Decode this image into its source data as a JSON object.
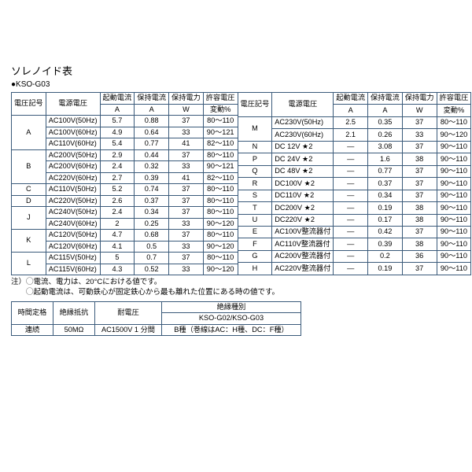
{
  "title": "ソレノイド表",
  "subtitle": "●KSO-G03",
  "headers": {
    "h1": "電圧記号",
    "h2": "電源電圧",
    "h3a": "起動電流",
    "h3b": "A",
    "h4a": "保持電流",
    "h4b": "A",
    "h5a": "保持電力",
    "h5b": "W",
    "h6a": "許容電圧",
    "h6b": "変動%"
  },
  "left": [
    {
      "code": "A",
      "rows": [
        {
          "v": "AC100V(50Hz)",
          "a": "5.7",
          "b": "0.88",
          "c": "37",
          "d": "80～110"
        },
        {
          "v": "AC100V(60Hz)",
          "a": "4.9",
          "b": "0.64",
          "c": "33",
          "d": "90～121"
        },
        {
          "v": "AC110V(60Hz)",
          "a": "5.4",
          "b": "0.77",
          "c": "41",
          "d": "82～110"
        }
      ]
    },
    {
      "code": "B",
      "rows": [
        {
          "v": "AC200V(50Hz)",
          "a": "2.9",
          "b": "0.44",
          "c": "37",
          "d": "80～110"
        },
        {
          "v": "AC200V(60Hz)",
          "a": "2.4",
          "b": "0.32",
          "c": "33",
          "d": "90～121"
        },
        {
          "v": "AC220V(60Hz)",
          "a": "2.7",
          "b": "0.39",
          "c": "41",
          "d": "82～110"
        }
      ]
    },
    {
      "code": "C",
      "rows": [
        {
          "v": "AC110V(50Hz)",
          "a": "5.2",
          "b": "0.74",
          "c": "37",
          "d": "80～110"
        }
      ]
    },
    {
      "code": "D",
      "rows": [
        {
          "v": "AC220V(50Hz)",
          "a": "2.6",
          "b": "0.37",
          "c": "37",
          "d": "80～110"
        }
      ]
    },
    {
      "code": "J",
      "rows": [
        {
          "v": "AC240V(50Hz)",
          "a": "2.4",
          "b": "0.34",
          "c": "37",
          "d": "80～110"
        },
        {
          "v": "AC240V(60Hz)",
          "a": "2",
          "b": "0.25",
          "c": "33",
          "d": "90～120"
        }
      ]
    },
    {
      "code": "K",
      "rows": [
        {
          "v": "AC120V(50Hz)",
          "a": "4.7",
          "b": "0.68",
          "c": "37",
          "d": "80～110"
        },
        {
          "v": "AC120V(60Hz)",
          "a": "4.1",
          "b": "0.5",
          "c": "33",
          "d": "90～120"
        }
      ]
    },
    {
      "code": "L",
      "rows": [
        {
          "v": "AC115V(50Hz)",
          "a": "5",
          "b": "0.7",
          "c": "37",
          "d": "80～110"
        },
        {
          "v": "AC115V(60Hz)",
          "a": "4.3",
          "b": "0.52",
          "c": "33",
          "d": "90～120"
        }
      ]
    }
  ],
  "right": [
    {
      "code": "M",
      "rows": [
        {
          "v": "AC230V(50Hz)",
          "a": "2.5",
          "b": "0.35",
          "c": "37",
          "d": "80～110"
        },
        {
          "v": "AC230V(60Hz)",
          "a": "2.1",
          "b": "0.26",
          "c": "33",
          "d": "90～120"
        }
      ]
    },
    {
      "code": "N",
      "rows": [
        {
          "v": "DC 12V ★2",
          "a": "—",
          "b": "3.08",
          "c": "37",
          "d": "90～110"
        }
      ]
    },
    {
      "code": "P",
      "rows": [
        {
          "v": "DC 24V ★2",
          "a": "—",
          "b": "1.6",
          "c": "38",
          "d": "90～110"
        }
      ]
    },
    {
      "code": "Q",
      "rows": [
        {
          "v": "DC 48V ★2",
          "a": "—",
          "b": "0.77",
          "c": "37",
          "d": "90～110"
        }
      ]
    },
    {
      "code": "R",
      "rows": [
        {
          "v": "DC100V ★2",
          "a": "—",
          "b": "0.37",
          "c": "37",
          "d": "90～110"
        }
      ]
    },
    {
      "code": "S",
      "rows": [
        {
          "v": "DC110V ★2",
          "a": "—",
          "b": "0.34",
          "c": "37",
          "d": "90～110"
        }
      ]
    },
    {
      "code": "T",
      "rows": [
        {
          "v": "DC200V ★2",
          "a": "—",
          "b": "0.19",
          "c": "38",
          "d": "90～110"
        }
      ]
    },
    {
      "code": "U",
      "rows": [
        {
          "v": "DC220V ★2",
          "a": "—",
          "b": "0.17",
          "c": "38",
          "d": "90～110"
        }
      ]
    },
    {
      "code": "E",
      "rows": [
        {
          "v": "AC100V整流器付",
          "a": "—",
          "b": "0.42",
          "c": "37",
          "d": "90～110"
        }
      ]
    },
    {
      "code": "F",
      "rows": [
        {
          "v": "AC110V整流器付",
          "a": "—",
          "b": "0.39",
          "c": "38",
          "d": "90～110"
        }
      ]
    },
    {
      "code": "G",
      "rows": [
        {
          "v": "AC200V整流器付",
          "a": "—",
          "b": "0.2",
          "c": "36",
          "d": "90～110"
        }
      ]
    },
    {
      "code": "H",
      "rows": [
        {
          "v": "AC220V整流器付",
          "a": "—",
          "b": "0.19",
          "c": "37",
          "d": "90～110"
        }
      ]
    }
  ],
  "note1": "注）◯電流、電力は、20°Cにおける値です。",
  "note2": "　　◯起動電流は、可動鉄心が固定鉄心から最も離れた位置にある時の値です。",
  "t2": {
    "h1": "時間定格",
    "h2": "絶縁抵抗",
    "h3": "耐電圧",
    "h4": "絶縁種別",
    "h5": "KSO-G02/KSO-G03",
    "r1": "連続",
    "r2": "50MΩ",
    "r3": "AC1500V 1 分間",
    "r4": "B種（巻線はAC：H種、DC：F種）"
  }
}
